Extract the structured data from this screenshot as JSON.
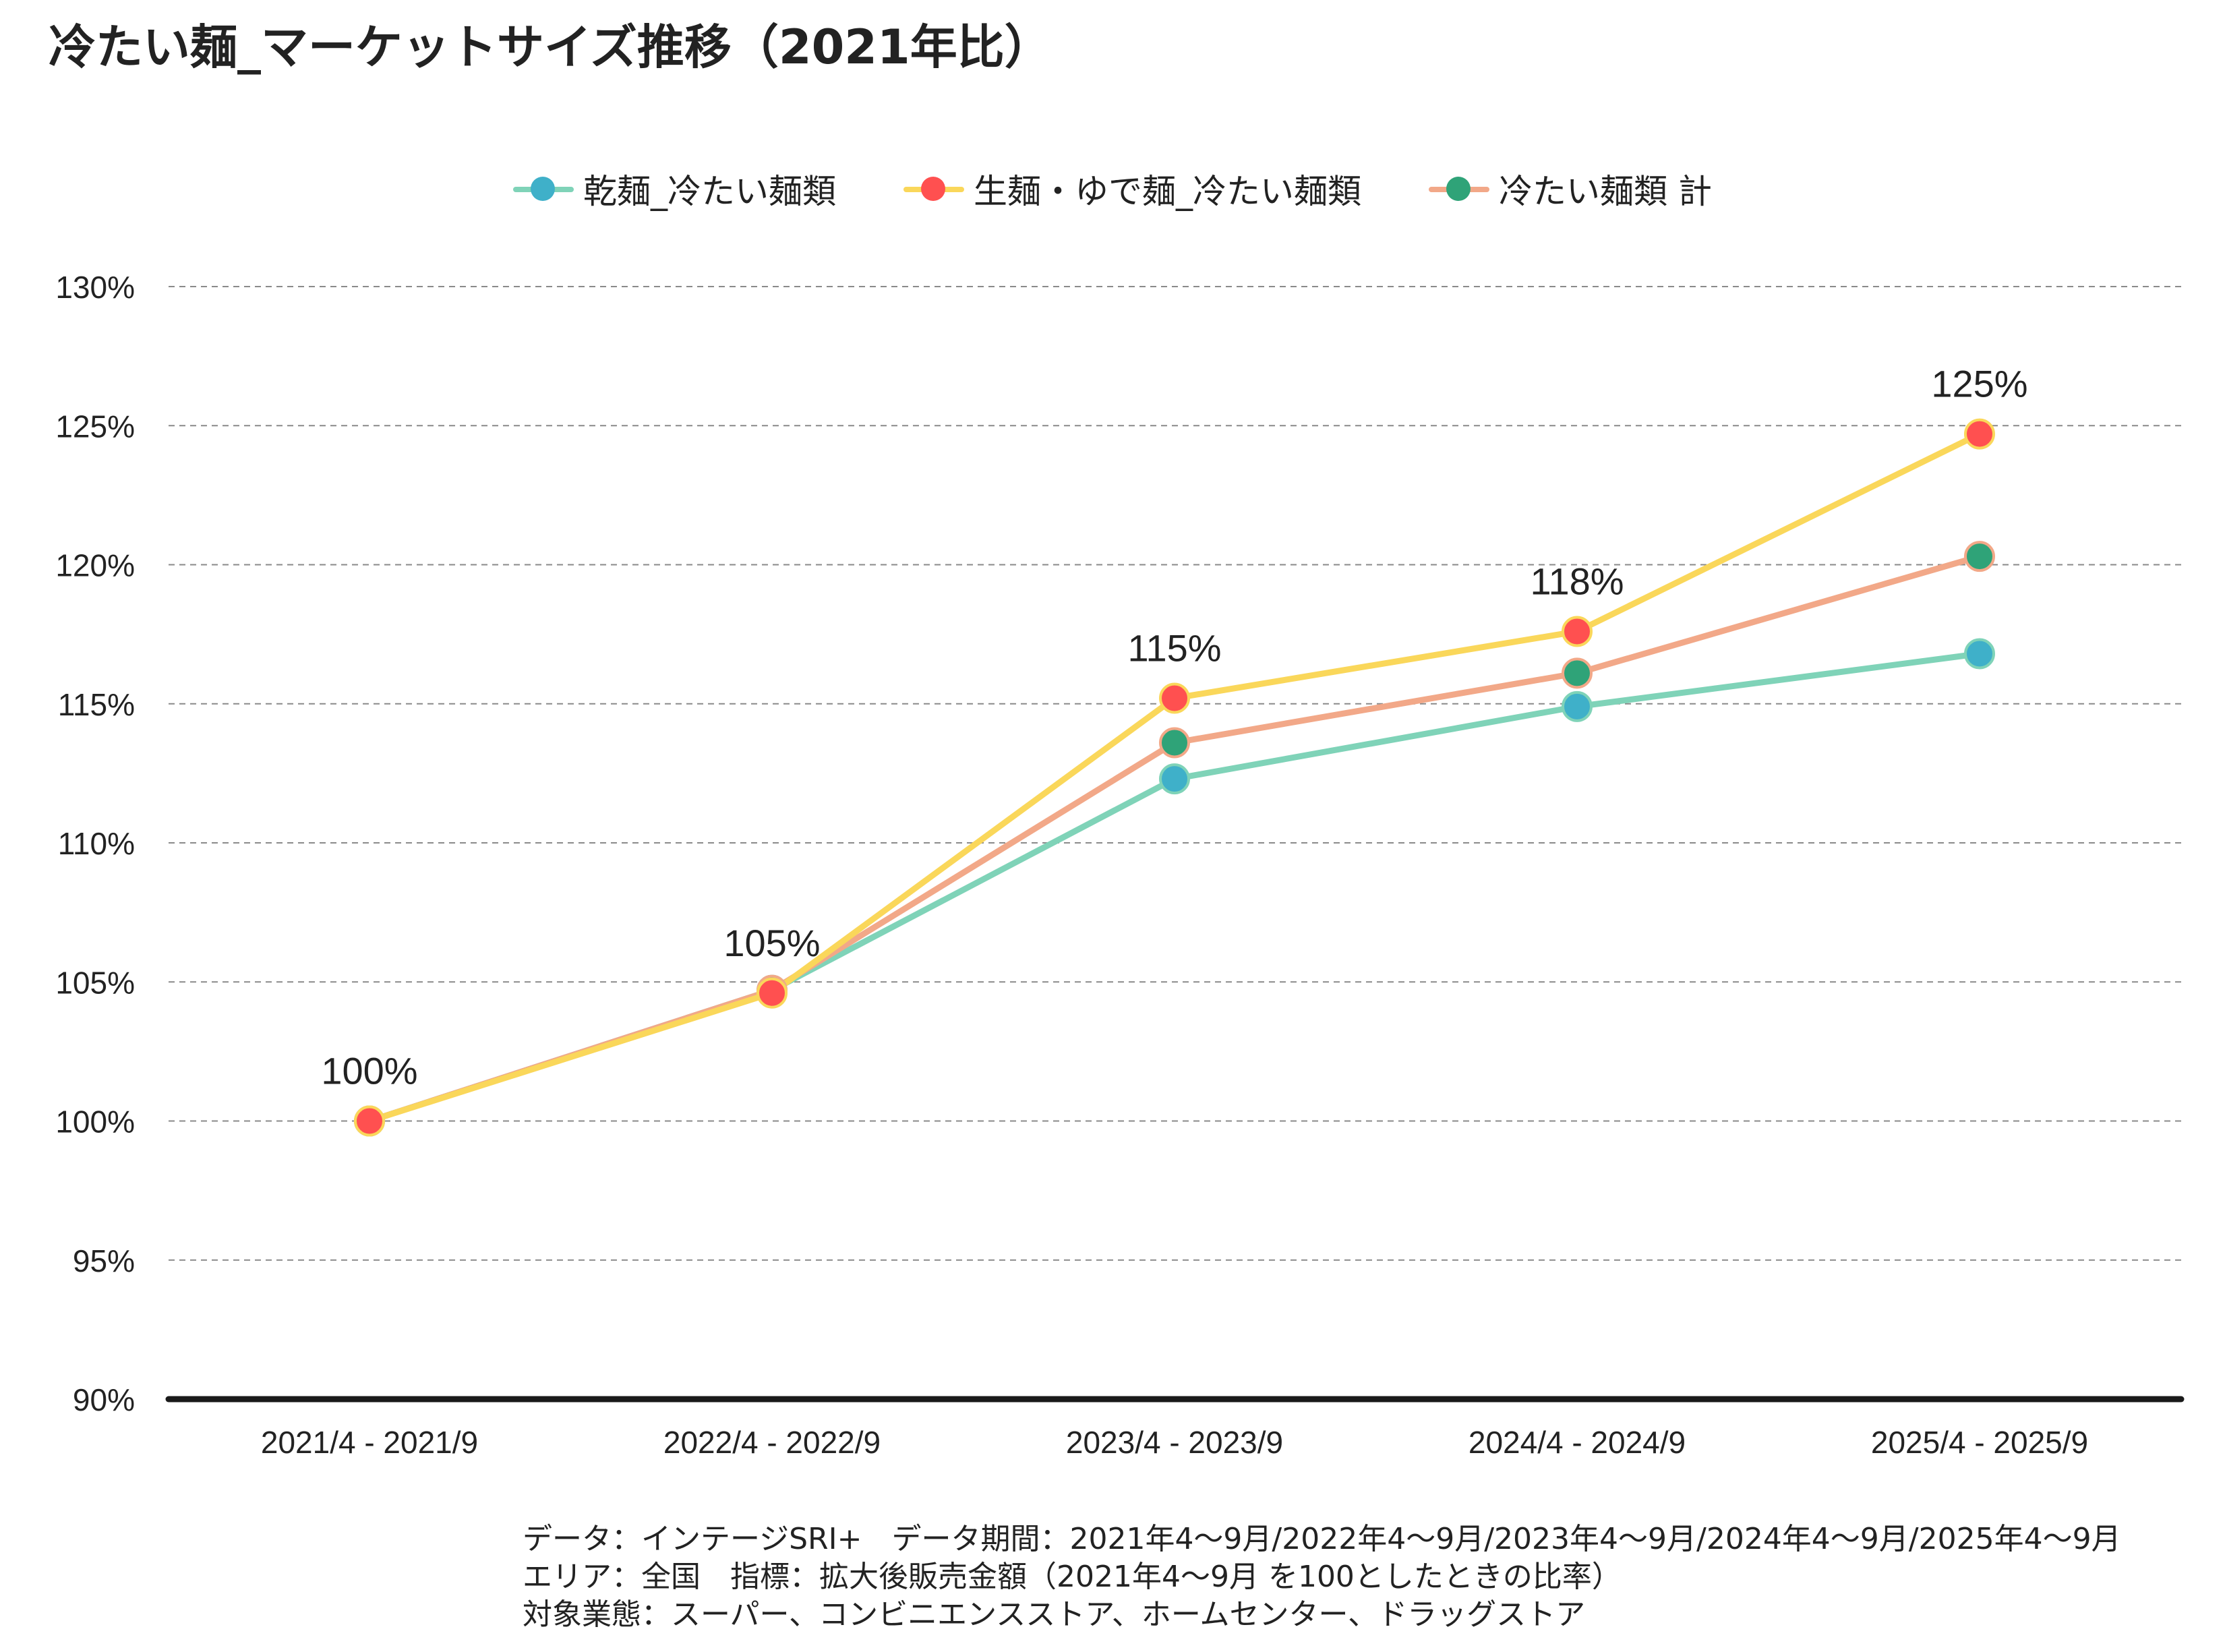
{
  "title": "冷たい麺_マーケットサイズ推移（2021年比）",
  "chart_data": {
    "type": "line",
    "categories": [
      "2021/4 - 2021/9",
      "2022/4 - 2022/9",
      "2023/4 - 2023/9",
      "2024/4 - 2024/9",
      "2025/4 - 2025/9"
    ],
    "series": [
      {
        "name": "乾麺_冷たい麺類",
        "values": [
          100,
          104.7,
          112.3,
          114.9,
          116.8
        ],
        "line_color": "#7fd3b8",
        "marker_color": "#3fb0c9"
      },
      {
        "name": "生麺・ゆで麺_冷たい麺類",
        "values": [
          100,
          104.6,
          115.2,
          117.6,
          124.7
        ],
        "line_color": "#fad75a",
        "marker_color": "#ff5050"
      },
      {
        "name": "冷たい麺類 計",
        "values": [
          100,
          104.7,
          113.6,
          116.1,
          120.3
        ],
        "line_color": "#f2a888",
        "marker_color": "#2fa378"
      }
    ],
    "data_labels": {
      "series": 1,
      "texts": [
        "100%",
        "105%",
        "115%",
        "118%",
        "125%"
      ]
    },
    "y_ticks": [
      "90%",
      "95%",
      "100%",
      "105%",
      "110%",
      "115%",
      "120%",
      "125%",
      "130%"
    ],
    "ylim": [
      90,
      130
    ],
    "y_tick_step": 5,
    "grid": true,
    "legend_position": "top-center"
  },
  "footnote": {
    "line1": "データ：インテージSRI+　データ期間：2021年4〜9月/2022年4〜9月/2023年4〜9月/2024年4〜9月/2025年4〜9月",
    "line2": "エリア：全国　指標：拡大後販売金額（2021年4〜9月  を100としたときの比率）",
    "line3": "対象業態：スーパー、コンビニエンスストア、ホームセンター、ドラッグストア"
  }
}
